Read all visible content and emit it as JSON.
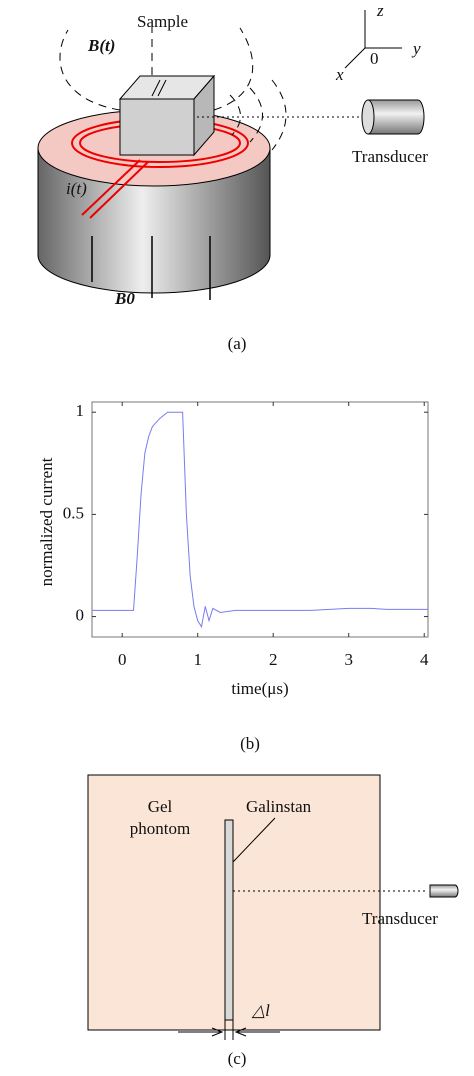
{
  "panel_a": {
    "field_label": "B(t)",
    "sample_label": "Sample",
    "axis_z": "z",
    "axis_y": "y",
    "axis_x": "x",
    "origin": "0",
    "transducer_label": "Transducer",
    "current_label": "i(t)",
    "static_field_label": "B0",
    "caption": "(a)"
  },
  "chart_data": {
    "type": "line",
    "xlabel": "time(μs)",
    "ylabel": "normalized current",
    "x": [
      -0.4,
      0.15,
      0.2,
      0.25,
      0.3,
      0.35,
      0.4,
      0.5,
      0.6,
      0.7,
      0.8,
      0.85,
      0.9,
      0.95,
      1.0,
      1.05,
      1.1,
      1.15,
      1.2,
      1.3,
      1.5,
      2.0,
      2.5,
      3.0,
      3.3,
      3.5,
      4.05
    ],
    "series": [
      {
        "name": "normalized current",
        "color": "#7b7bf0",
        "values": [
          0.03,
          0.03,
          0.3,
          0.6,
          0.8,
          0.88,
          0.93,
          0.97,
          1.0,
          1.0,
          1.0,
          0.5,
          0.2,
          0.05,
          -0.02,
          -0.05,
          0.05,
          -0.02,
          0.04,
          0.02,
          0.03,
          0.03,
          0.03,
          0.04,
          0.04,
          0.035,
          0.035
        ]
      }
    ],
    "xlim": [
      -0.4,
      4.05
    ],
    "ylim": [
      -0.1,
      1.05
    ],
    "xticks": [
      0,
      1,
      2,
      3,
      4
    ],
    "yticks": [
      0,
      0.5,
      1
    ],
    "caption": "(b)"
  },
  "panel_c": {
    "gel_line1": "Gel",
    "gel_line2": "phontom",
    "galinstan_label": "Galinstan",
    "transducer_label": "Transducer",
    "width_label": "△l",
    "caption": "(c)"
  }
}
